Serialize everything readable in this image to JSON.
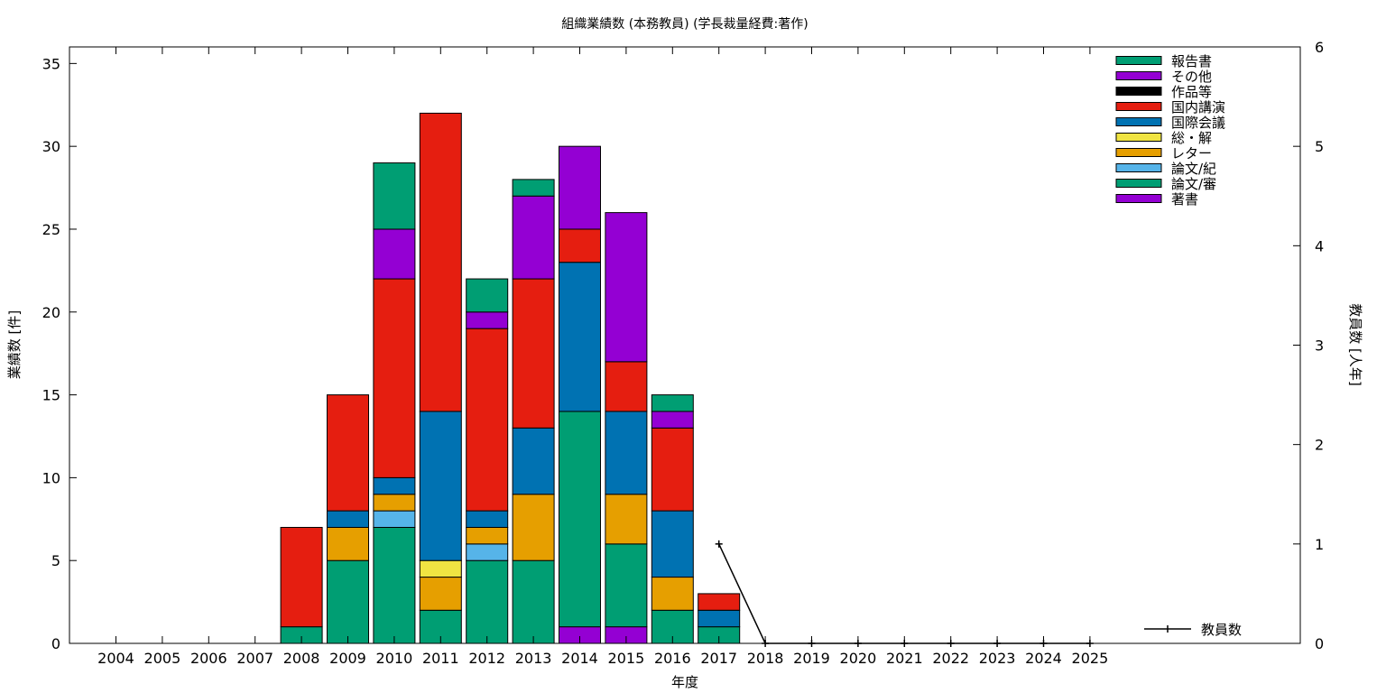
{
  "chart_data": {
    "type": "bar",
    "stacked": true,
    "title": "組織業績数 (本務教員) (学長裁量経費:著作)",
    "xlabel": "年度",
    "ylabel": "業績数 [件]",
    "y2label": "教員数 [人年]",
    "categories": [
      "2004",
      "2005",
      "2006",
      "2007",
      "2008",
      "2009",
      "2010",
      "2011",
      "2012",
      "2013",
      "2014",
      "2015",
      "2016",
      "2017",
      "2018",
      "2019",
      "2020",
      "2021",
      "2022",
      "2023",
      "2024",
      "2025"
    ],
    "ylim": [
      0,
      36
    ],
    "yticks": [
      0,
      5,
      10,
      15,
      20,
      25,
      30,
      35
    ],
    "y2lim": [
      0,
      6
    ],
    "y2ticks": [
      0,
      1,
      2,
      3,
      4,
      5,
      6
    ],
    "grid": false,
    "legend_position": "top-right",
    "series": [
      {
        "name": "著書",
        "color": "#9400d3",
        "values": [
          0,
          0,
          0,
          0,
          0,
          0,
          0,
          0,
          0,
          0,
          1,
          1,
          0,
          0,
          0,
          0,
          0,
          0,
          0,
          0,
          0,
          0
        ]
      },
      {
        "name": "論文/審",
        "color": "#009e73",
        "values": [
          0,
          0,
          0,
          0,
          1,
          5,
          7,
          2,
          5,
          5,
          13,
          5,
          2,
          1,
          0,
          0,
          0,
          0,
          0,
          0,
          0,
          0
        ]
      },
      {
        "name": "論文/紀",
        "color": "#56b4e9",
        "values": [
          0,
          0,
          0,
          0,
          0,
          0,
          1,
          0,
          1,
          0,
          0,
          0,
          0,
          0,
          0,
          0,
          0,
          0,
          0,
          0,
          0,
          0
        ]
      },
      {
        "name": "レター",
        "color": "#e69f00",
        "values": [
          0,
          0,
          0,
          0,
          0,
          2,
          1,
          2,
          1,
          4,
          0,
          3,
          2,
          0,
          0,
          0,
          0,
          0,
          0,
          0,
          0,
          0
        ]
      },
      {
        "name": "総・解",
        "color": "#f0e442",
        "values": [
          0,
          0,
          0,
          0,
          0,
          0,
          0,
          1,
          0,
          0,
          0,
          0,
          0,
          0,
          0,
          0,
          0,
          0,
          0,
          0,
          0,
          0
        ]
      },
      {
        "name": "国際会議",
        "color": "#0072b2",
        "values": [
          0,
          0,
          0,
          0,
          0,
          1,
          1,
          9,
          1,
          4,
          9,
          5,
          4,
          1,
          0,
          0,
          0,
          0,
          0,
          0,
          0,
          0
        ]
      },
      {
        "name": "国内講演",
        "color": "#e51e10",
        "values": [
          0,
          0,
          0,
          0,
          6,
          7,
          12,
          18,
          11,
          9,
          2,
          3,
          5,
          1,
          0,
          0,
          0,
          0,
          0,
          0,
          0,
          0
        ]
      },
      {
        "name": "作品等",
        "color": "#000000",
        "values": [
          0,
          0,
          0,
          0,
          0,
          0,
          0,
          0,
          0,
          0,
          0,
          0,
          0,
          0,
          0,
          0,
          0,
          0,
          0,
          0,
          0,
          0
        ]
      },
      {
        "name": "その他",
        "color": "#9400d3",
        "values": [
          0,
          0,
          0,
          0,
          0,
          0,
          3,
          0,
          1,
          5,
          5,
          9,
          1,
          0,
          0,
          0,
          0,
          0,
          0,
          0,
          0,
          0
        ]
      },
      {
        "name": "報告書",
        "color": "#009e73",
        "values": [
          0,
          0,
          0,
          0,
          0,
          0,
          4,
          0,
          2,
          1,
          0,
          0,
          1,
          0,
          0,
          0,
          0,
          0,
          0,
          0,
          0,
          0
        ]
      }
    ],
    "line_series": {
      "name": "教員数",
      "axis": "y2",
      "color": "#000000",
      "x": [
        "2017",
        "2018",
        "2019",
        "2020",
        "2021",
        "2022",
        "2023",
        "2024",
        "2025"
      ],
      "values": [
        1,
        0,
        0,
        0,
        0,
        0,
        0,
        0,
        0
      ]
    }
  }
}
